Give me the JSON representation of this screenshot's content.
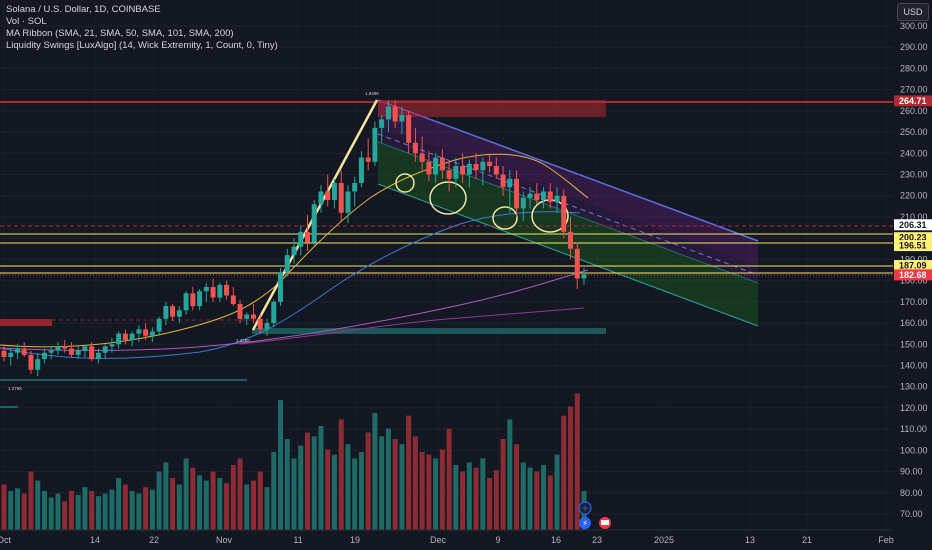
{
  "legend": {
    "symbol": "Solana / U.S. Dollar, 1D, COINBASE",
    "volume": "Vol · SOL",
    "ma_ribbon": "MA Ribbon (SMA, 21, SMA, 50, SMA, 101, SMA, 200)",
    "liquidity": "Liquidity Swings [LuxAlgo] (14, Wick Extremity, 1, Count, 0, Tiny)"
  },
  "currency_button": "USD",
  "price_axis": {
    "ticks": [
      "300.00",
      "290.00",
      "280.00",
      "270.00",
      "260.00",
      "250.00",
      "240.00",
      "230.00",
      "220.00",
      "210.00",
      "200.00",
      "190.00",
      "180.00",
      "170.00",
      "160.00",
      "150.00",
      "140.00",
      "130.00",
      "120.00",
      "110.00",
      "100.00",
      "90.00",
      "80.00",
      "70.00"
    ],
    "price_tags": [
      {
        "label": "264.71",
        "bg": "#b22833",
        "fg": "#ffffff"
      },
      {
        "label": "206.31",
        "bg": "#ffffff",
        "fg": "#131722"
      },
      {
        "label": "200.23",
        "bg": "#fff176",
        "fg": "#131722"
      },
      {
        "label": "196.51",
        "bg": "#fff176",
        "fg": "#131722"
      },
      {
        "label": "187.09",
        "bg": "#fff176",
        "fg": "#131722"
      },
      {
        "label": "183.07",
        "bg": "#fff176",
        "fg": "#131722"
      },
      {
        "label": "182.68",
        "bg": "#f23645",
        "fg": "#ffffff"
      }
    ]
  },
  "time_axis": {
    "labels": [
      "Oct",
      "14",
      "22",
      "Nov",
      "11",
      "19",
      "Dec",
      "9",
      "16",
      "23",
      "2025",
      "13",
      "21",
      "Feb"
    ]
  },
  "annotations": {
    "high_label": "1.849K",
    "low_label_1": "1.275K",
    "low_label_2": "1.336K"
  },
  "colors": {
    "background": "#131722",
    "up": "#26a69a",
    "down": "#ef5350",
    "vol_up": "#1e6b66",
    "vol_down": "#8c2b34",
    "resistance": "#b22833",
    "support_line": "#f5e663",
    "channel_top": "#5b6ee1",
    "trend_line": "#f0e6a0"
  },
  "chart_data": {
    "type": "candlestick",
    "symbol": "SOL/USD",
    "interval": "1D",
    "exchange": "COINBASE",
    "ylim": [
      65,
      305
    ],
    "last_price": 182.68,
    "horizontal_levels": [
      264.71,
      206.31,
      200.23,
      196.51,
      187.09,
      183.07,
      182.68
    ],
    "candles": [
      [
        147,
        150,
        142,
        144
      ],
      [
        144,
        148,
        140,
        146
      ],
      [
        146,
        150,
        143,
        148
      ],
      [
        148,
        151,
        144,
        145
      ],
      [
        145,
        147,
        136,
        138
      ],
      [
        138,
        146,
        135,
        143
      ],
      [
        143,
        148,
        141,
        146
      ],
      [
        146,
        149,
        143,
        147
      ],
      [
        147,
        151,
        145,
        149
      ],
      [
        149,
        152,
        146,
        148
      ],
      [
        148,
        151,
        144,
        145
      ],
      [
        145,
        149,
        143,
        147
      ],
      [
        147,
        150,
        144,
        149
      ],
      [
        149,
        151,
        142,
        143
      ],
      [
        143,
        148,
        141,
        146
      ],
      [
        146,
        150,
        143,
        149
      ],
      [
        149,
        153,
        146,
        150
      ],
      [
        150,
        156,
        148,
        155
      ],
      [
        155,
        157,
        150,
        152
      ],
      [
        152,
        156,
        149,
        155
      ],
      [
        155,
        159,
        151,
        157
      ],
      [
        157,
        160,
        152,
        154
      ],
      [
        154,
        158,
        151,
        156
      ],
      [
        156,
        163,
        154,
        162
      ],
      [
        162,
        170,
        159,
        168
      ],
      [
        168,
        169,
        161,
        163
      ],
      [
        163,
        168,
        160,
        166
      ],
      [
        166,
        175,
        164,
        174
      ],
      [
        174,
        177,
        166,
        168
      ],
      [
        168,
        176,
        166,
        175
      ],
      [
        175,
        179,
        170,
        177
      ],
      [
        177,
        181,
        170,
        172
      ],
      [
        172,
        179,
        170,
        178
      ],
      [
        178,
        180,
        171,
        173
      ],
      [
        173,
        177,
        168,
        169
      ],
      [
        169,
        171,
        160,
        162
      ],
      [
        162,
        165,
        159,
        164
      ],
      [
        164,
        169,
        160,
        162
      ],
      [
        162,
        164,
        155,
        157
      ],
      [
        157,
        162,
        154,
        160
      ],
      [
        160,
        171,
        158,
        170
      ],
      [
        170,
        186,
        168,
        184
      ],
      [
        184,
        195,
        182,
        192
      ],
      [
        192,
        200,
        188,
        196
      ],
      [
        196,
        206,
        192,
        203
      ],
      [
        203,
        211,
        194,
        198
      ],
      [
        198,
        218,
        196,
        216
      ],
      [
        216,
        225,
        212,
        222
      ],
      [
        222,
        230,
        215,
        218
      ],
      [
        218,
        228,
        214,
        226
      ],
      [
        226,
        232,
        208,
        212
      ],
      [
        212,
        225,
        207,
        222
      ],
      [
        222,
        229,
        215,
        226
      ],
      [
        226,
        241,
        224,
        238
      ],
      [
        238,
        247,
        232,
        236
      ],
      [
        236,
        255,
        234,
        252
      ],
      [
        252,
        258,
        245,
        256
      ],
      [
        256,
        265,
        250,
        262
      ],
      [
        262,
        265,
        252,
        255
      ],
      [
        255,
        262,
        249,
        258
      ],
      [
        258,
        260,
        240,
        245
      ],
      [
        245,
        252,
        236,
        240
      ],
      [
        240,
        248,
        232,
        236
      ],
      [
        236,
        241,
        227,
        230
      ],
      [
        230,
        240,
        226,
        238
      ],
      [
        238,
        242,
        228,
        232
      ],
      [
        232,
        236,
        222,
        228
      ],
      [
        228,
        238,
        224,
        234
      ],
      [
        234,
        240,
        226,
        230
      ],
      [
        230,
        237,
        224,
        235
      ],
      [
        235,
        240,
        228,
        232
      ],
      [
        232,
        238,
        225,
        236
      ],
      [
        236,
        240,
        231,
        234
      ],
      [
        234,
        238,
        228,
        230
      ],
      [
        230,
        234,
        220,
        224
      ],
      [
        224,
        232,
        212,
        228
      ],
      [
        228,
        232,
        210,
        214
      ],
      [
        214,
        222,
        208,
        219
      ],
      [
        219,
        224,
        214,
        221
      ],
      [
        221,
        226,
        216,
        218
      ],
      [
        218,
        224,
        214,
        222
      ],
      [
        222,
        226,
        214,
        217
      ],
      [
        217,
        224,
        212,
        220
      ],
      [
        220,
        223,
        200,
        203
      ],
      [
        203,
        210,
        190,
        195
      ],
      [
        195,
        198,
        176,
        181
      ],
      [
        181,
        186,
        178,
        183
      ]
    ],
    "volume_relative": [
      0.35,
      0.3,
      0.32,
      0.28,
      0.45,
      0.38,
      0.3,
      0.25,
      0.28,
      0.22,
      0.3,
      0.27,
      0.33,
      0.3,
      0.26,
      0.28,
      0.31,
      0.4,
      0.35,
      0.3,
      0.28,
      0.33,
      0.31,
      0.45,
      0.52,
      0.4,
      0.35,
      0.55,
      0.48,
      0.42,
      0.38,
      0.45,
      0.4,
      0.36,
      0.5,
      0.55,
      0.35,
      0.38,
      0.45,
      0.33,
      0.6,
      1.0,
      0.7,
      0.55,
      0.65,
      0.75,
      0.72,
      0.8,
      0.62,
      0.58,
      0.85,
      0.66,
      0.55,
      0.6,
      0.75,
      0.9,
      0.72,
      0.78,
      0.7,
      0.66,
      0.88,
      0.72,
      0.6,
      0.58,
      0.55,
      0.62,
      0.78,
      0.5,
      0.45,
      0.52,
      0.48,
      0.55,
      0.4,
      0.46,
      0.7,
      0.85,
      0.66,
      0.52,
      0.48,
      0.45,
      0.5,
      0.42,
      0.58,
      0.88,
      0.95,
      1.05,
      0.3
    ]
  }
}
